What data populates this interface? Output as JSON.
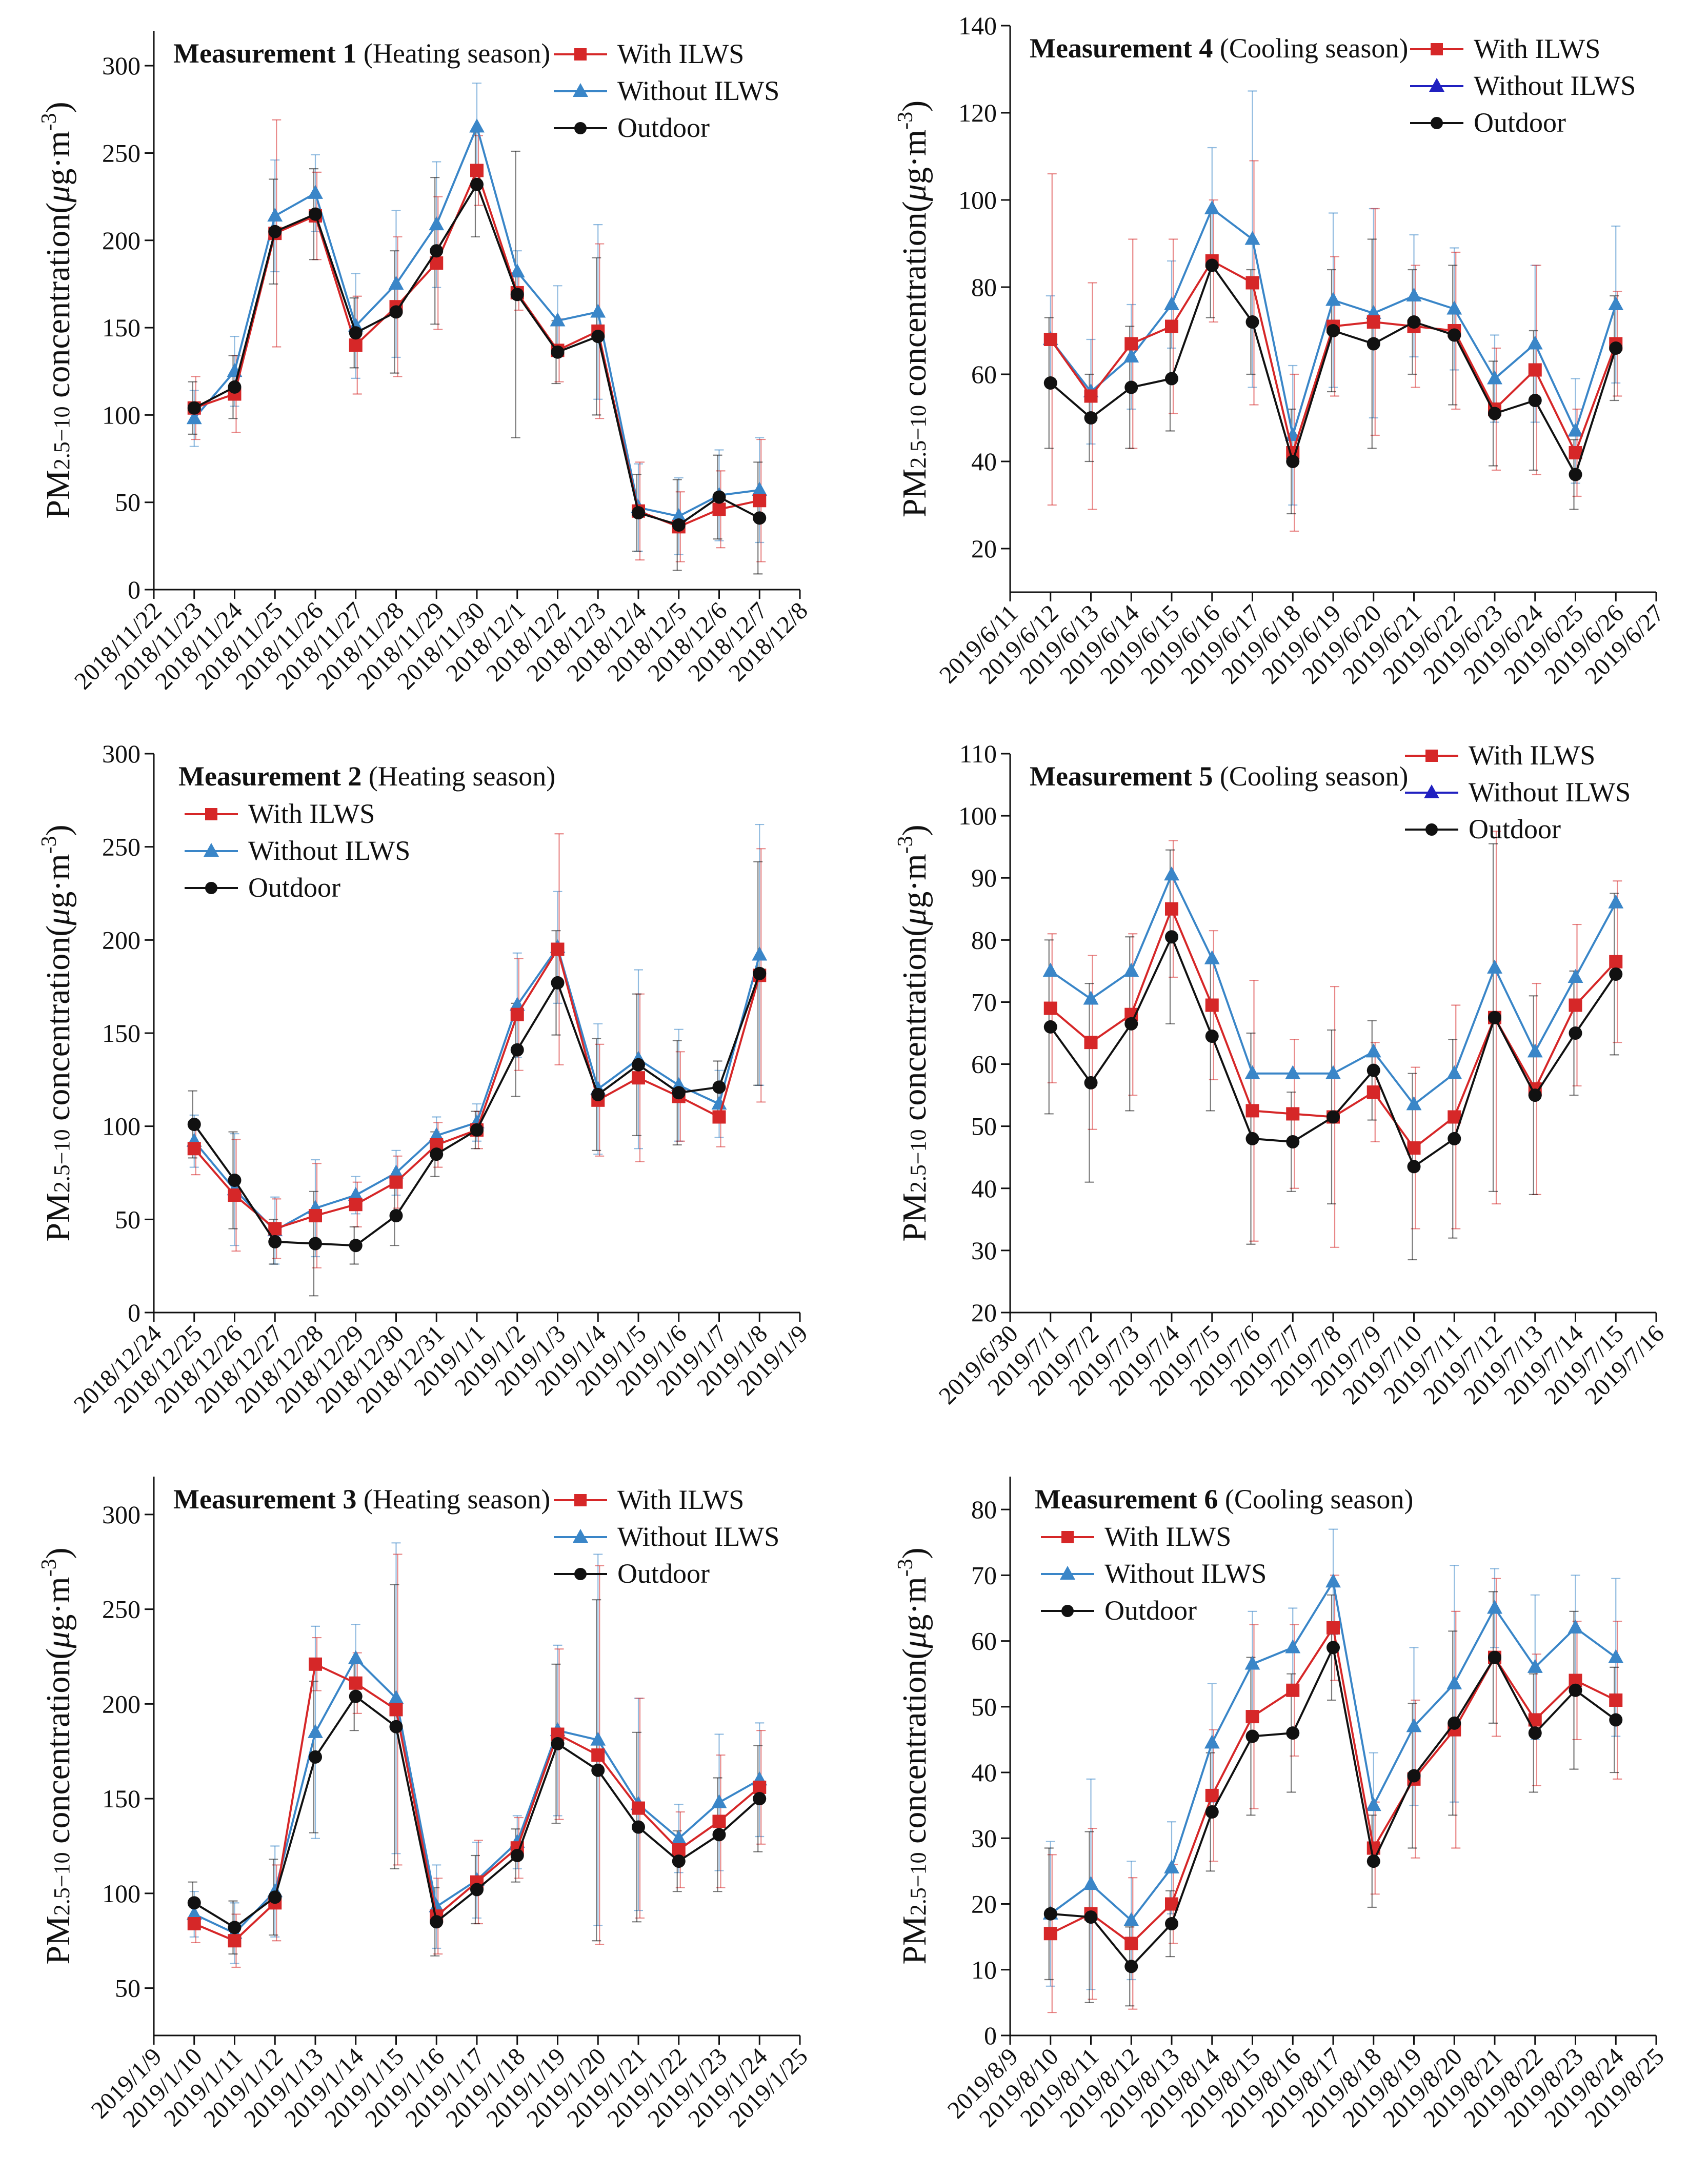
{
  "figure": {
    "panel_label_template": [
      "Measurement",
      "season"
    ],
    "colors": {
      "with_ilws": "#d62728",
      "without_ilws": "#3a86c8",
      "without_ilws_marker_alt": "#2020c0",
      "outdoor": "#111111",
      "axis": "#111111"
    }
  },
  "chart_data": [
    {
      "type": "line",
      "panel": "Measurement 1",
      "title_bold": "Measurement 1",
      "title_rest": "(Heating season)",
      "ylabel_main": "PM",
      "ylabel_sub": "2.5−10",
      "ylabel_rest": " concentration(",
      "ylabel_mu": "μ",
      "ylabel_unit": "g·m",
      "ylabel_exp": "-3",
      "ylabel_close": ")",
      "ylim": [
        0,
        320
      ],
      "yticks": [
        0,
        50,
        100,
        150,
        200,
        250,
        300
      ],
      "x_dates": [
        "2018/11/22",
        "2018/11/23",
        "2018/11/24",
        "2018/11/25",
        "2018/11/26",
        "2018/11/27",
        "2018/11/28",
        "2018/11/29",
        "2018/11/30",
        "2018/12/1",
        "2018/12/2",
        "2018/12/3",
        "2018/12/4",
        "2018/12/5",
        "2018/12/6",
        "2018/12/7",
        "2018/12/8"
      ],
      "point_indices": [
        1,
        2,
        3,
        4,
        5,
        6,
        7,
        8,
        9,
        10,
        11,
        12,
        13,
        14,
        15
      ],
      "legend_position": "top-right",
      "series": [
        {
          "name": "With ILWS",
          "key": "with",
          "values": [
            104,
            112,
            204,
            214,
            140,
            162,
            187,
            240,
            170,
            137,
            148,
            45,
            36,
            46,
            51
          ],
          "errors": [
            18,
            22,
            65,
            25,
            28,
            40,
            38,
            20,
            10,
            18,
            50,
            28,
            20,
            22,
            35
          ]
        },
        {
          "name": "Without ILWS",
          "key": "without",
          "values": [
            98,
            125,
            214,
            227,
            151,
            175,
            209,
            265,
            182,
            154,
            159,
            47,
            42,
            54,
            57
          ],
          "errors": [
            16,
            20,
            32,
            22,
            30,
            42,
            36,
            25,
            12,
            20,
            50,
            25,
            22,
            26,
            30
          ]
        },
        {
          "name": "Outdoor",
          "key": "outdoor",
          "values": [
            104,
            116,
            205,
            215,
            147,
            159,
            194,
            232,
            169,
            136,
            145,
            44,
            37,
            53,
            41
          ],
          "errors": [
            15,
            18,
            30,
            26,
            20,
            35,
            42,
            30,
            82,
            18,
            45,
            22,
            26,
            24,
            32
          ]
        }
      ]
    },
    {
      "type": "line",
      "panel": "Measurement 4",
      "title_bold": "Measurement 4",
      "title_rest": "(Cooling season)",
      "ylabel_main": "PM",
      "ylabel_sub": "2.5−10",
      "ylabel_rest": " concentration(",
      "ylabel_mu": "μ",
      "ylabel_unit": "g·m",
      "ylabel_exp": "-3",
      "ylabel_close": ")",
      "ylim": [
        10,
        140
      ],
      "yticks": [
        20,
        40,
        60,
        80,
        100,
        120,
        140
      ],
      "x_dates": [
        "2019/6/11",
        "2019/6/12",
        "2019/6/13",
        "2019/6/14",
        "2019/6/15",
        "2019/6/16",
        "2019/6/17",
        "2019/6/18",
        "2019/6/19",
        "2019/6/20",
        "2019/6/21",
        "2019/6/22",
        "2019/6/23",
        "2019/6/24",
        "2019/6/25",
        "2019/6/26",
        "2019/6/27"
      ],
      "point_indices": [
        1,
        2,
        3,
        4,
        5,
        6,
        7,
        8,
        9,
        10,
        11,
        12,
        13,
        14,
        15
      ],
      "legend_position": "top-right",
      "series": [
        {
          "name": "With ILWS",
          "key": "with",
          "values": [
            68,
            55,
            67,
            71,
            86,
            81,
            42,
            71,
            72,
            71,
            70,
            52,
            61,
            42,
            67
          ],
          "errors": [
            38,
            26,
            24,
            20,
            14,
            28,
            18,
            16,
            26,
            14,
            18,
            14,
            24,
            10,
            12
          ]
        },
        {
          "name": "Without ILWS",
          "key": "without",
          "values": [
            68,
            56,
            64,
            76,
            98,
            91,
            46,
            77,
            74,
            78,
            75,
            59,
            67,
            47,
            76
          ],
          "errors": [
            10,
            12,
            12,
            10,
            14,
            34,
            16,
            20,
            24,
            14,
            14,
            10,
            18,
            12,
            18
          ]
        },
        {
          "name": "Outdoor",
          "key": "outdoor",
          "values": [
            58,
            50,
            57,
            59,
            85,
            72,
            40,
            70,
            67,
            72,
            69,
            51,
            54,
            37,
            66
          ],
          "errors": [
            15,
            10,
            14,
            12,
            12,
            12,
            12,
            14,
            24,
            12,
            16,
            12,
            16,
            8,
            12
          ]
        }
      ]
    },
    {
      "type": "line",
      "panel": "Measurement 2",
      "title_bold": "Measurement 2",
      "title_rest": "(Heating season)",
      "ylabel_main": "PM",
      "ylabel_sub": "2.5−10",
      "ylabel_rest": " concentration(",
      "ylabel_mu": "μ",
      "ylabel_unit": "g·m",
      "ylabel_exp": "-3",
      "ylabel_close": ")",
      "ylim": [
        0,
        300
      ],
      "yticks": [
        0,
        50,
        100,
        150,
        200,
        250,
        300
      ],
      "x_dates": [
        "2018/12/24",
        "2018/12/25",
        "2018/12/26",
        "2018/12/27",
        "2018/12/28",
        "2018/12/29",
        "2018/12/30",
        "2018/12/31",
        "2019/1/1",
        "2019/1/2",
        "2019/1/3",
        "2019/1/4",
        "2019/1/5",
        "2019/1/6",
        "2019/1/7",
        "2019/1/8",
        "2019/1/9"
      ],
      "point_indices": [
        1,
        2,
        3,
        4,
        5,
        6,
        7,
        8,
        9,
        10,
        11,
        12,
        13,
        14,
        15
      ],
      "legend_position": "top-left",
      "series": [
        {
          "name": "With ILWS",
          "key": "with",
          "values": [
            88,
            63,
            45,
            52,
            58,
            70,
            90,
            98,
            160,
            195,
            114,
            126,
            116,
            105,
            181
          ],
          "errors": [
            14,
            30,
            16,
            28,
            12,
            14,
            12,
            10,
            30,
            62,
            30,
            45,
            24,
            16,
            68
          ]
        },
        {
          "name": "Without ILWS",
          "key": "without",
          "values": [
            92,
            66,
            44,
            56,
            63,
            75,
            95,
            102,
            165,
            196,
            120,
            136,
            122,
            112,
            192
          ],
          "errors": [
            14,
            30,
            18,
            26,
            10,
            12,
            10,
            10,
            28,
            30,
            35,
            48,
            30,
            18,
            70
          ]
        },
        {
          "name": "Outdoor",
          "key": "outdoor",
          "values": [
            101,
            71,
            38,
            37,
            36,
            52,
            85,
            98,
            141,
            177,
            117,
            133,
            118,
            121,
            182
          ],
          "errors": [
            18,
            26,
            12,
            28,
            10,
            16,
            12,
            10,
            25,
            28,
            30,
            38,
            28,
            14,
            60
          ]
        }
      ]
    },
    {
      "type": "line",
      "panel": "Measurement 5",
      "title_bold": "Measurement 5",
      "title_rest": "(Cooling season)",
      "ylabel_main": "PM",
      "ylabel_sub": "2.5−10",
      "ylabel_rest": " concentration(",
      "ylabel_mu": "μ",
      "ylabel_unit": "g·m",
      "ylabel_exp": "-3",
      "ylabel_close": ")",
      "ylim": [
        20,
        110
      ],
      "yticks": [
        20,
        30,
        40,
        50,
        60,
        70,
        80,
        90,
        100,
        110
      ],
      "x_dates": [
        "2019/6/30",
        "2019/7/1",
        "2019/7/2",
        "2019/7/3",
        "2019/7/4",
        "2019/7/5",
        "2019/7/6",
        "2019/7/7",
        "2019/7/8",
        "2019/7/9",
        "2019/7/10",
        "2019/7/11",
        "2019/7/12",
        "2019/7/13",
        "2019/7/14",
        "2019/7/15",
        "2019/7/16"
      ],
      "point_indices": [
        1,
        2,
        3,
        4,
        5,
        6,
        7,
        8,
        9,
        10,
        11,
        12,
        13,
        14,
        15
      ],
      "legend_position": "top-right",
      "series": [
        {
          "name": "With ILWS",
          "key": "with",
          "values": [
            69,
            63.5,
            68,
            85,
            69.5,
            52.5,
            52,
            51.5,
            55.5,
            46.5,
            51.5,
            67.5,
            56,
            69.5,
            76.5
          ],
          "errors": [
            12,
            14,
            13,
            11,
            12,
            21,
            12,
            21,
            8,
            13,
            18,
            30,
            17,
            13,
            13
          ]
        },
        {
          "name": "Without ILWS",
          "key": "without",
          "values": [
            75,
            70.5,
            75,
            90.5,
            77,
            58.5,
            58.5,
            58.5,
            62,
            53.5,
            58.5,
            75.5,
            62,
            74,
            86
          ]
        },
        {
          "name": "Outdoor",
          "key": "outdoor",
          "values": [
            66,
            57,
            66.5,
            80.5,
            64.5,
            48,
            47.5,
            51.5,
            59,
            43.5,
            48,
            67.5,
            55,
            65,
            74.5
          ],
          "errors": [
            14,
            16,
            14,
            14,
            12,
            17,
            8,
            14,
            8,
            15,
            16,
            28,
            16,
            10,
            13
          ]
        }
      ]
    },
    {
      "type": "line",
      "panel": "Measurement 3",
      "title_bold": "Measurement 3",
      "title_rest": "(Heating season)",
      "ylabel_main": "PM",
      "ylabel_sub": "2.5−10",
      "ylabel_rest": " concentration(",
      "ylabel_mu": "μ",
      "ylabel_unit": "g·m",
      "ylabel_exp": "-3",
      "ylabel_close": ")",
      "ylim": [
        25,
        320
      ],
      "yticks": [
        50,
        100,
        150,
        200,
        250,
        300
      ],
      "x_dates": [
        "2019/1/9",
        "2019/1/10",
        "2019/1/11",
        "2019/1/12",
        "2019/1/13",
        "2019/1/14",
        "2019/1/15",
        "2019/1/16",
        "2019/1/17",
        "2019/1/18",
        "2019/1/19",
        "2019/1/20",
        "2019/1/21",
        "2019/1/22",
        "2019/1/23",
        "2019/1/24",
        "2019/1/25"
      ],
      "point_indices": [
        1,
        2,
        3,
        4,
        5,
        6,
        7,
        8,
        9,
        10,
        11,
        12,
        13,
        14,
        15
      ],
      "legend_position": "top-right",
      "series": [
        {
          "name": "With ILWS",
          "key": "with",
          "values": [
            84,
            75,
            95,
            221,
            211,
            197,
            88,
            106,
            124,
            184,
            173,
            145,
            123,
            138,
            156
          ],
          "errors": [
            10,
            14,
            20,
            14,
            16,
            82,
            20,
            22,
            16,
            45,
            100,
            58,
            20,
            35,
            30
          ]
        },
        {
          "name": "Without ILWS",
          "key": "without",
          "values": [
            89,
            79,
            101,
            185,
            224,
            203,
            93,
            107,
            127,
            186,
            181,
            147,
            129,
            148,
            160
          ],
          "errors": [
            12,
            16,
            24,
            56,
            18,
            82,
            22,
            20,
            14,
            45,
            98,
            56,
            18,
            36,
            30
          ]
        },
        {
          "name": "Outdoor",
          "key": "outdoor",
          "values": [
            95,
            82,
            98,
            172,
            204,
            188,
            85,
            102,
            120,
            179,
            165,
            135,
            117,
            131,
            150
          ],
          "errors": [
            11,
            14,
            20,
            40,
            18,
            75,
            18,
            18,
            14,
            42,
            90,
            50,
            16,
            30,
            28
          ]
        }
      ]
    },
    {
      "type": "line",
      "panel": "Measurement 6",
      "title_bold": "Measurement 6",
      "title_rest": "(Cooling season)",
      "ylabel_main": "PM",
      "ylabel_sub": "2.5−10",
      "ylabel_rest": " concentration(",
      "ylabel_mu": "μ",
      "ylabel_unit": "g·m",
      "ylabel_exp": "-3",
      "ylabel_close": ")",
      "ylim": [
        0,
        85
      ],
      "yticks": [
        0,
        10,
        20,
        30,
        40,
        50,
        60,
        70,
        80
      ],
      "x_dates": [
        "2019/8/9",
        "2019/8/10",
        "2019/8/11",
        "2019/8/12",
        "2019/8/13",
        "2019/8/14",
        "2019/8/15",
        "2019/8/16",
        "2019/8/17",
        "2019/8/18",
        "2019/8/19",
        "2019/8/20",
        "2019/8/21",
        "2019/8/22",
        "2019/8/23",
        "2019/8/24",
        "2019/8/25"
      ],
      "point_indices": [
        1,
        2,
        3,
        4,
        5,
        6,
        7,
        8,
        9,
        10,
        11,
        12,
        13,
        14,
        15
      ],
      "legend_position": "top-left",
      "series": [
        {
          "name": "With ILWS",
          "key": "with",
          "values": [
            15.5,
            18.5,
            14,
            20,
            36.5,
            48.5,
            52.5,
            62,
            28.5,
            39,
            46.5,
            57.5,
            48,
            54,
            51
          ],
          "errors": [
            12,
            13,
            10,
            6,
            10,
            14,
            10,
            8,
            7,
            12,
            18,
            12,
            10,
            9,
            12
          ]
        },
        {
          "name": "Without ILWS",
          "key": "without",
          "values": [
            18.5,
            23,
            17.5,
            25.5,
            44.5,
            56.5,
            59,
            69,
            35,
            47,
            53.5,
            65,
            56,
            62,
            57.5
          ],
          "errors": [
            11,
            16,
            9,
            7,
            9,
            8,
            6,
            8,
            8,
            12,
            18,
            6,
            11,
            8,
            12
          ]
        },
        {
          "name": "Outdoor",
          "key": "outdoor",
          "values": [
            18.5,
            18,
            10.5,
            17,
            34,
            45.5,
            46,
            59,
            26.5,
            39.5,
            47.5,
            57.5,
            46,
            52.5,
            48
          ],
          "errors": [
            10,
            13,
            6,
            5,
            9,
            12,
            9,
            8,
            7,
            11,
            14,
            10,
            9,
            12,
            8
          ]
        }
      ]
    }
  ]
}
